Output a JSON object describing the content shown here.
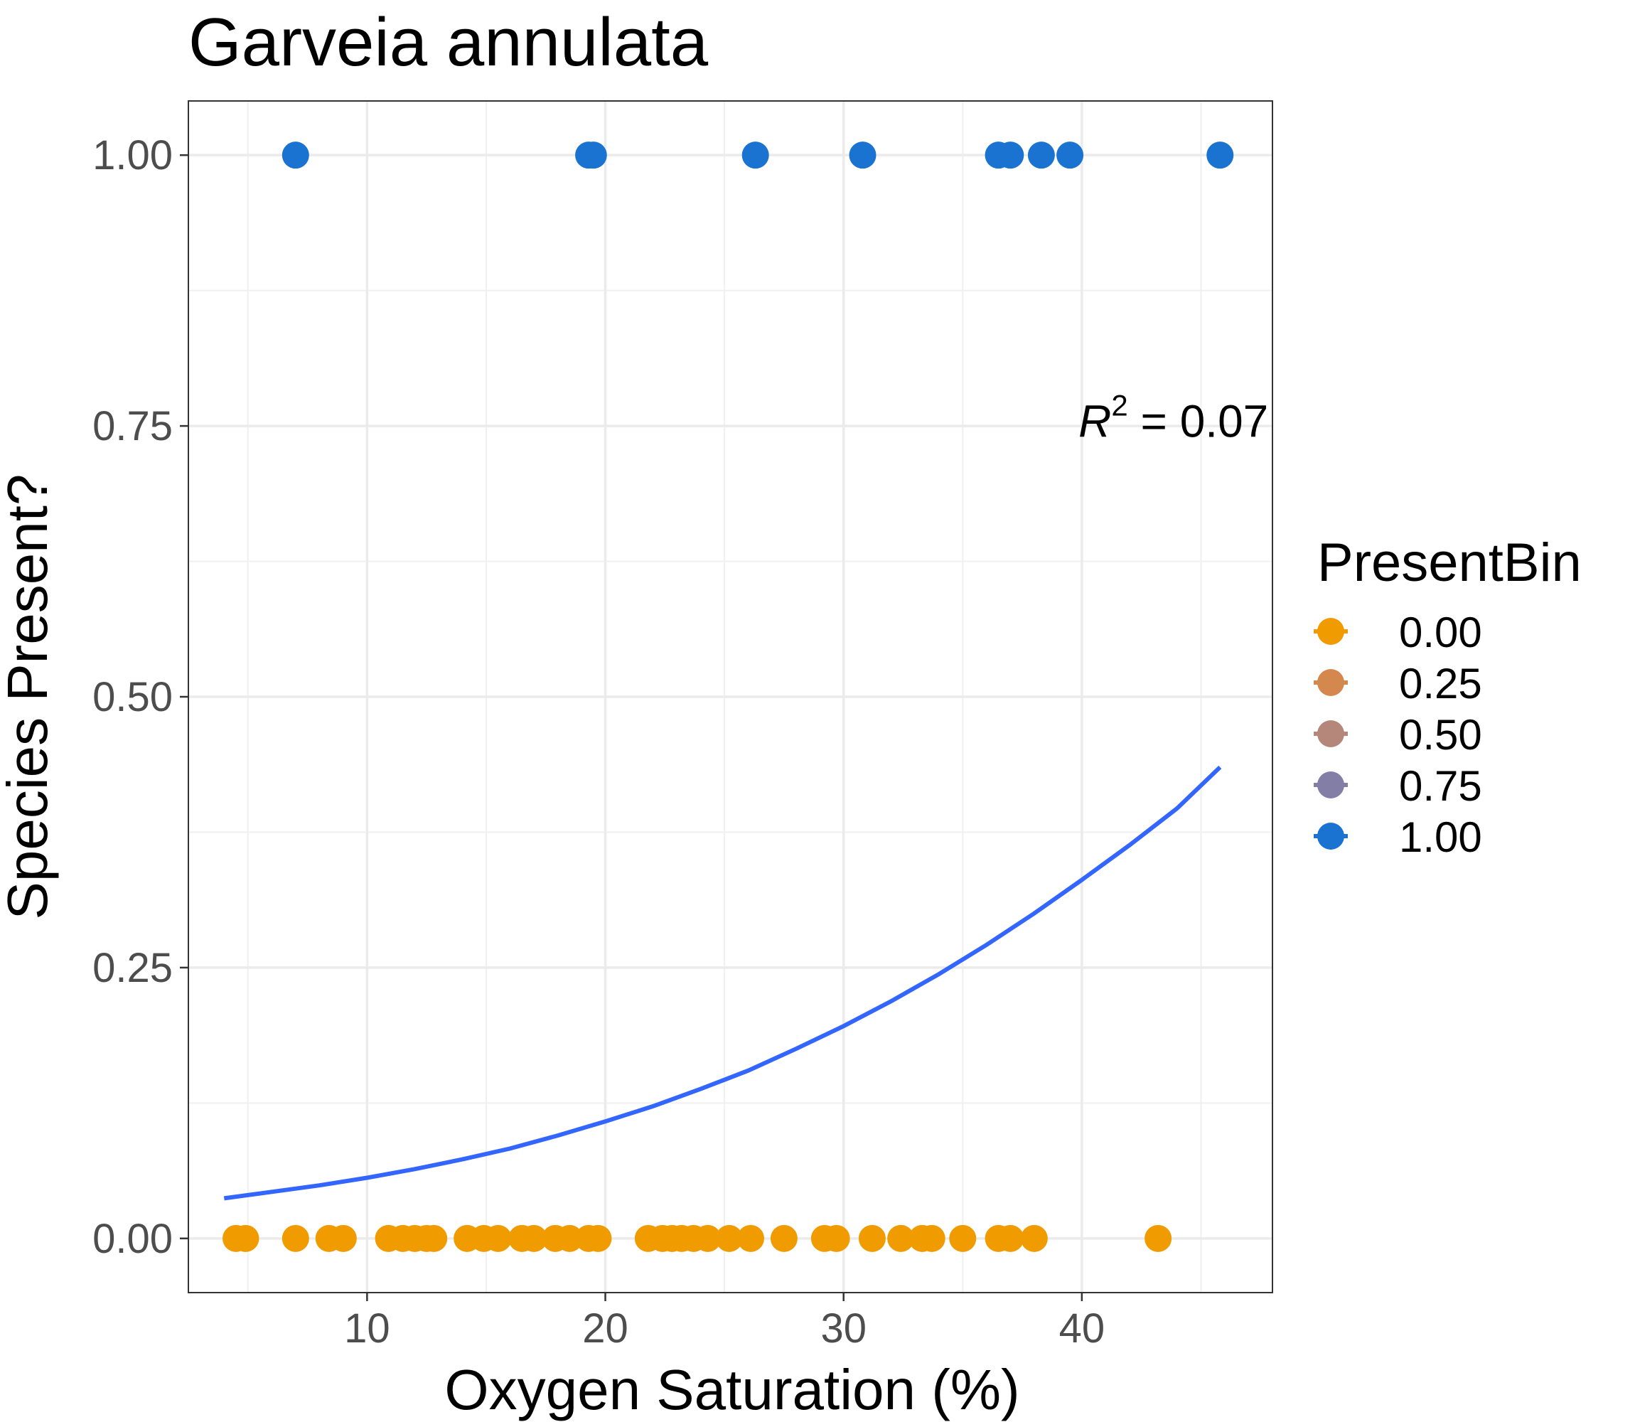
{
  "chart_data": {
    "type": "scatter",
    "title": "Garveia annulata",
    "xlabel": "Oxygen Saturation (%)",
    "ylabel": "Species Present?",
    "xlim": [
      2.5,
      48
    ],
    "ylim": [
      -0.05,
      1.05
    ],
    "x_ticks": [
      10,
      20,
      30,
      40
    ],
    "x_tick_labels": [
      "10",
      "20",
      "30",
      "40"
    ],
    "y_ticks": [
      0,
      0.25,
      0.5,
      0.75,
      1.0
    ],
    "y_tick_labels": [
      "0.00",
      "0.25",
      "0.50",
      "0.75",
      "1.00"
    ],
    "grid": true,
    "legend": {
      "title": "PresentBin",
      "placement": "right",
      "entries": [
        {
          "label": "0.00",
          "color": "#F09B00"
        },
        {
          "label": "0.25",
          "color": "#D4884E"
        },
        {
          "label": "0.50",
          "color": "#B4877A"
        },
        {
          "label": "0.75",
          "color": "#837EA6"
        },
        {
          "label": "1.00",
          "color": "#1A73D0"
        }
      ]
    },
    "series": [
      {
        "y": 1,
        "color": "#1A73D0",
        "x": [
          7.0,
          19.3,
          19.5,
          26.3,
          30.8,
          36.5,
          37.0,
          38.3,
          39.5,
          45.8
        ]
      },
      {
        "y": 0,
        "color": "#F09B00",
        "x": [
          4.5,
          4.9,
          7.0,
          8.4,
          9.0,
          10.9,
          11.5,
          12.0,
          12.5,
          12.8,
          14.2,
          14.9,
          15.5,
          16.5,
          17.0,
          17.9,
          18.5,
          19.3,
          19.7,
          21.8,
          22.4,
          22.8,
          23.2,
          23.7,
          24.3,
          25.2,
          26.1,
          27.5,
          29.2,
          29.7,
          31.2,
          32.4,
          33.3,
          33.7,
          35.0,
          36.5,
          37.0,
          38.0,
          43.2
        ]
      }
    ],
    "fit_line": {
      "color": "#3366FF",
      "x": [
        4.0,
        6,
        8,
        10,
        12,
        14,
        16,
        18,
        20,
        22,
        24,
        26,
        28,
        30,
        32,
        34,
        36,
        38,
        40,
        42,
        44,
        45.8
      ],
      "y": [
        0.037,
        0.043,
        0.049,
        0.056,
        0.064,
        0.073,
        0.083,
        0.095,
        0.108,
        0.122,
        0.138,
        0.155,
        0.175,
        0.196,
        0.219,
        0.244,
        0.271,
        0.3,
        0.331,
        0.363,
        0.397,
        0.435
      ]
    },
    "annotation": {
      "symbol": "R",
      "exponent": "2",
      "text": " = 0.07",
      "x": 45.8,
      "y": 0.74
    }
  }
}
